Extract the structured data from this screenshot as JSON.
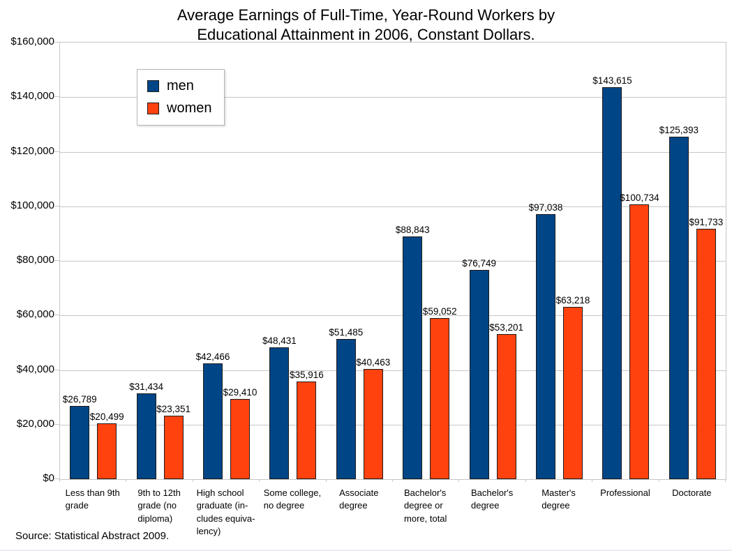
{
  "title": {
    "line1": "Average Earnings of Full-Time, Year-Round Workers by",
    "line2": "Educational Attainment in 2006, Constant Dollars."
  },
  "legend": {
    "items": [
      {
        "label": "men",
        "color": "#004586"
      },
      {
        "label": "women",
        "color": "#FF420E"
      }
    ]
  },
  "source": "Source: Statistical Abstract 2009.",
  "chart_data": {
    "type": "bar",
    "title": "Average Earnings of Full-Time, Year-Round Workers by Educational Attainment in 2006, Constant Dollars.",
    "xlabel": "",
    "ylabel": "",
    "ylim": [
      0,
      160000
    ],
    "ytick_step": 20000,
    "ytick_labels": [
      "$0",
      "$20,000",
      "$40,000",
      "$60,000",
      "$80,000",
      "$100,000",
      "$120,000",
      "$140,000",
      "$160,000"
    ],
    "grid": true,
    "legend_position": "top-left",
    "categories": [
      "Less than 9th grade",
      "9th to 12th grade (no diploma)",
      "High school graduate (includes equivalency)",
      "Some college, no degree",
      "Associate degree",
      "Bachelor's degree or more, total",
      "Bachelor's degree",
      "Master's degree",
      "Professional",
      "Doctorate"
    ],
    "categories_display": [
      "Less than 9th\ngrade",
      "9th to 12th\ngrade (no\ndiploma)",
      "High school\ngraduate (in-\ncludes equiva-\nlency)",
      "Some college,\nno degree",
      "Associate\ndegree",
      "Bachelor's\ndegree or\nmore, total",
      "Bachelor's\ndegree",
      "Master's\ndegree",
      "Professional",
      "Doctorate"
    ],
    "series": [
      {
        "name": "men",
        "color": "#004586",
        "values": [
          26789,
          31434,
          42466,
          48431,
          51485,
          88843,
          76749,
          97038,
          143615,
          125393
        ],
        "labels": [
          "$26,789",
          "$31,434",
          "$42,466",
          "$48,431",
          "$51,485",
          "$88,843",
          "$76,749",
          "$97,038",
          "$143,615",
          "$125,393"
        ]
      },
      {
        "name": "women",
        "color": "#FF420E",
        "values": [
          20499,
          23351,
          29410,
          35916,
          40463,
          59052,
          53201,
          63218,
          100734,
          91733
        ],
        "labels": [
          "$20,499",
          "$23,351",
          "$29,410",
          "$35,916",
          "$40,463",
          "$59,052",
          "$53,201",
          "$63,218",
          "$100,734",
          "$91,733"
        ]
      }
    ]
  }
}
